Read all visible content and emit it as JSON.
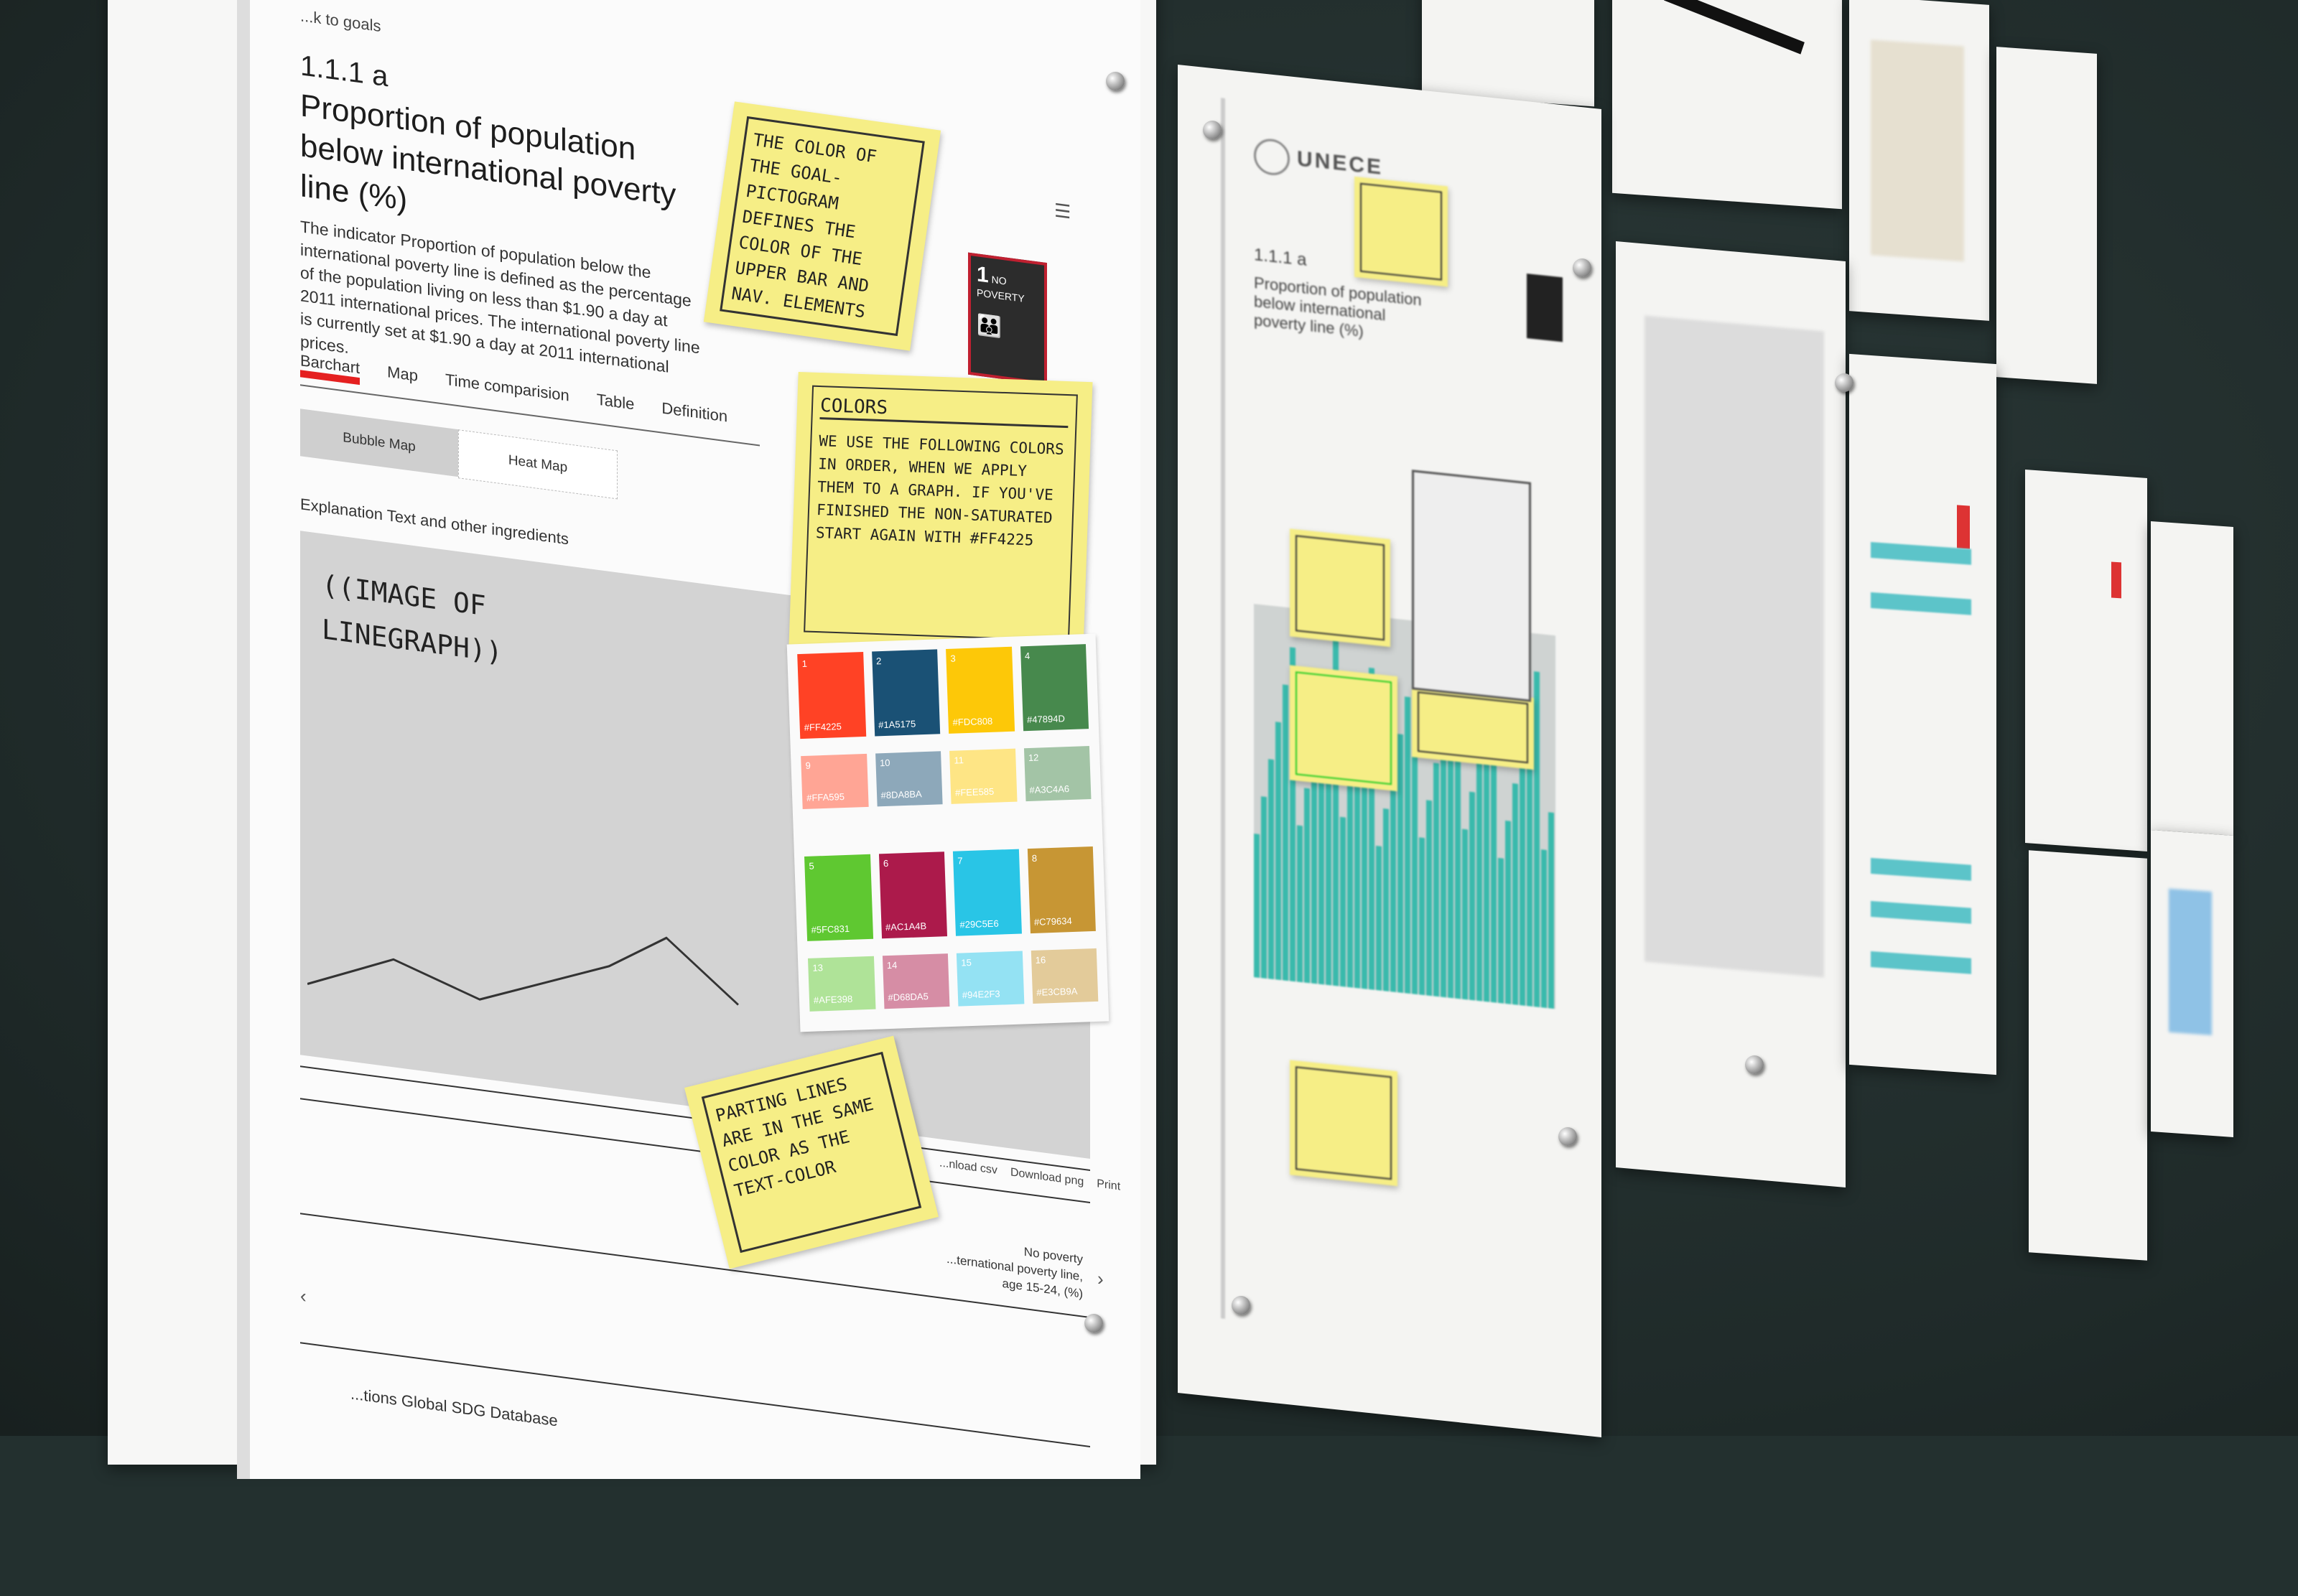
{
  "main_sheet": {
    "back_link": "...k to goals",
    "indicator_code": "1.1.1 a",
    "title": "Proportion of population below international poverty line (%)",
    "description": "The indicator Proportion of population below the international poverty line is defined as the percentage of the population living on less than $1.90 a day at 2011 international prices. The international poverty line is currently set at $1.90 a day at 2011 international prices.",
    "menu_icon": "hamburger-icon",
    "pictogram": {
      "number": "1",
      "label": "NO POVERTY",
      "color": "#2c2c2c"
    },
    "tabs": [
      {
        "label": "Barchart",
        "active": true
      },
      {
        "label": "Map",
        "active": false
      },
      {
        "label": "Time comparision",
        "active": false
      },
      {
        "label": "Table",
        "active": false
      },
      {
        "label": "Definition",
        "active": false
      }
    ],
    "map_toggle": [
      {
        "label": "Bubble Map",
        "active": true
      },
      {
        "label": "Heat Map",
        "active": false
      }
    ],
    "explanation_label": "Explanation Text and other ingredients",
    "image_placeholder": "((Image of Linegraph))",
    "downloads": [
      "...nload csv",
      "Download png",
      "Print"
    ],
    "series_label": {
      "line1": "No poverty",
      "line2": "...ternational poverty line,",
      "line3": "age 15-24, (%)"
    },
    "footer": "...tions Global SDG Database",
    "prev_icon": "chevron-left-icon",
    "next_icon": "chevron-right-icon",
    "active_tab_color": "#e52020"
  },
  "sticky_notes": {
    "pictogram_note": "The color of the goal-pictogram defines the color of the upper bar and nav. elements",
    "colors_title": "Colors",
    "colors_note": "We use the following colors in order, when we apply them to a graph. If you've finished the non-saturated start again with #FF4225",
    "parting_lines_note": "Parting lines are in the same color as the text-color"
  },
  "swatches": [
    {
      "n": "1",
      "hex": "#FF4225"
    },
    {
      "n": "2",
      "hex": "#1A5175"
    },
    {
      "n": "3",
      "hex": "#FDC808"
    },
    {
      "n": "4",
      "hex": "#47894D"
    },
    {
      "n": "9",
      "hex": "#FFA595"
    },
    {
      "n": "10",
      "hex": "#8DA8BA"
    },
    {
      "n": "11",
      "hex": "#FEE585"
    },
    {
      "n": "12",
      "hex": "#A3C4A6"
    },
    {
      "n": "5",
      "hex": "#5FC831"
    },
    {
      "n": "6",
      "hex": "#AC1A4B"
    },
    {
      "n": "7",
      "hex": "#29C5E6"
    },
    {
      "n": "8",
      "hex": "#C79634"
    },
    {
      "n": "13",
      "hex": "#AFE398"
    },
    {
      "n": "14",
      "hex": "#D68DA5"
    },
    {
      "n": "15",
      "hex": "#94E2F3"
    },
    {
      "n": "16",
      "hex": "#E3CB9A"
    }
  ],
  "second_sheet": {
    "logo_text": "UNECE",
    "indicator_code": "1.1.1 a",
    "title": "Proportion of population below international poverty line (%)",
    "spacing_marks": [
      "60",
      "60",
      "60"
    ]
  }
}
